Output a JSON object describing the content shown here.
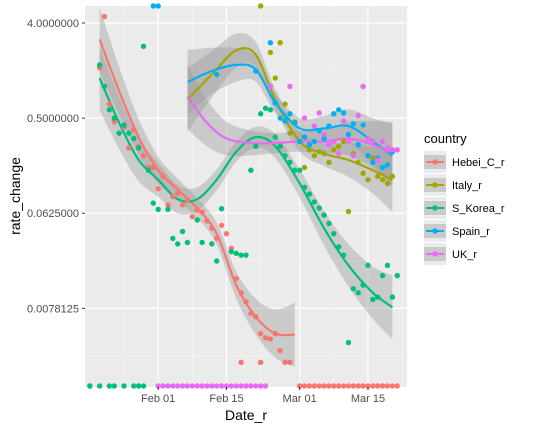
{
  "chart_data": {
    "type": "scatter",
    "xlabel": "Date_r",
    "ylabel": "rate_change",
    "y_scale": "log2",
    "ylim": [
      0.0014,
      5.8
    ],
    "xlim": [
      "2020-01-17",
      "2020-03-23"
    ],
    "x_ticks": [
      {
        "date": "2020-02-01",
        "label": "Feb 01"
      },
      {
        "date": "2020-02-15",
        "label": "Feb 15"
      },
      {
        "date": "2020-03-01",
        "label": "Mar 01"
      },
      {
        "date": "2020-03-15",
        "label": "Mar 15"
      }
    ],
    "y_ticks": [
      {
        "value": 0.0078125,
        "label": "0.0078125"
      },
      {
        "value": 0.0625,
        "label": "0.0625000"
      },
      {
        "value": 0.5,
        "label": "0.5000000"
      },
      {
        "value": 4,
        "label": "4.0000000"
      }
    ],
    "grid": true,
    "legend": {
      "title": "country",
      "placement": "right"
    },
    "series": [
      {
        "name": "Hebei_C_r",
        "color": "#F8766D",
        "points": [
          [
            "2020-01-20",
            1.5
          ],
          [
            "2020-01-21",
            4.6
          ],
          [
            "2020-01-22",
            0.68
          ],
          [
            "2020-01-23",
            0.46
          ],
          [
            "2020-01-24",
            0.36
          ],
          [
            "2020-01-25",
            0.41
          ],
          [
            "2020-01-26",
            0.26
          ],
          [
            "2020-01-27",
            0.39
          ],
          [
            "2020-01-28",
            0.27
          ],
          [
            "2020-01-29",
            0.22
          ],
          [
            "2020-01-30",
            0.17
          ],
          [
            "2020-01-31",
            0.17
          ],
          [
            "2020-02-01",
            0.107
          ],
          [
            "2020-02-02",
            0.14
          ],
          [
            "2020-02-03",
            0.075
          ],
          [
            "2020-02-04",
            0.09
          ],
          [
            "2020-02-05",
            0.097
          ],
          [
            "2020-02-06",
            0.075
          ],
          [
            "2020-02-07",
            0.083
          ],
          [
            "2020-02-08",
            0.058
          ],
          [
            "2020-02-09",
            0.067
          ],
          [
            "2020-02-10",
            0.064
          ],
          [
            "2020-02-11",
            0.053
          ],
          [
            "2020-02-12",
            0.045
          ],
          [
            "2020-02-13",
            0.036
          ],
          [
            "2020-02-14",
            0.048
          ],
          [
            "2020-02-15",
            0.04
          ],
          [
            "2020-02-16",
            0.029
          ],
          [
            "2020-02-17",
            0.015
          ],
          [
            "2020-02-18",
            0.011
          ],
          [
            "2020-02-19",
            0.009
          ],
          [
            "2020-02-20",
            0.007
          ],
          [
            "2020-02-21",
            0.0065
          ],
          [
            "2020-02-22",
            0.0045
          ],
          [
            "2020-02-23",
            0.0041
          ],
          [
            "2020-02-24",
            0.004
          ],
          [
            "2020-02-25",
            0.0045
          ],
          [
            "2020-02-26",
            0.0031
          ],
          [
            "2020-02-27",
            0.0024
          ],
          [
            "2020-02-28",
            0.0024
          ],
          [
            "2020-02-18",
            0.0024
          ],
          [
            "2020-02-22",
            0.0024
          ]
        ],
        "zeros": [
          "2020-01-18",
          "2020-03-01",
          "2020-03-02",
          "2020-03-03",
          "2020-03-04",
          "2020-03-05",
          "2020-03-06",
          "2020-03-07",
          "2020-03-08",
          "2020-03-09",
          "2020-03-10",
          "2020-03-11",
          "2020-03-12",
          "2020-03-13",
          "2020-03-14",
          "2020-03-15",
          "2020-03-16",
          "2020-03-17",
          "2020-03-18",
          "2020-03-19",
          "2020-03-20",
          "2020-03-21"
        ],
        "fit": [
          [
            "2020-01-20",
            2.8
          ],
          [
            "2020-01-24",
            0.9
          ],
          [
            "2020-01-28",
            0.33
          ],
          [
            "2020-02-01",
            0.16
          ],
          [
            "2020-02-05",
            0.105
          ],
          [
            "2020-02-09",
            0.07
          ],
          [
            "2020-02-13",
            0.04
          ],
          [
            "2020-02-17",
            0.013
          ],
          [
            "2020-02-21",
            0.0065
          ],
          [
            "2020-02-25",
            0.0045
          ],
          [
            "2020-02-29",
            0.0044
          ]
        ]
      },
      {
        "name": "Italy_r",
        "color": "#A3A500",
        "points": [
          [
            "2020-02-22",
            6.0
          ],
          [
            "2020-02-24",
            2.1
          ],
          [
            "2020-02-25",
            1.2
          ],
          [
            "2020-02-26",
            2.6
          ],
          [
            "2020-02-27",
            0.68
          ],
          [
            "2020-02-28",
            0.36
          ],
          [
            "2020-02-29",
            0.46
          ],
          [
            "2020-03-01",
            0.3
          ],
          [
            "2020-03-02",
            0.17
          ],
          [
            "2020-03-03",
            0.25
          ],
          [
            "2020-03-04",
            0.22
          ],
          [
            "2020-03-05",
            0.24
          ],
          [
            "2020-03-06",
            0.23
          ],
          [
            "2020-03-07",
            0.19
          ],
          [
            "2020-03-08",
            0.25
          ],
          [
            "2020-03-09",
            0.27
          ],
          [
            "2020-03-10",
            0.3
          ],
          [
            "2020-03-11",
            0.065
          ],
          [
            "2020-03-12",
            0.23
          ],
          [
            "2020-03-13",
            0.19
          ],
          [
            "2020-03-14",
            0.15
          ],
          [
            "2020-03-15",
            0.13
          ],
          [
            "2020-03-16",
            0.21
          ],
          [
            "2020-03-17",
            0.14
          ],
          [
            "2020-03-18",
            0.13
          ],
          [
            "2020-03-19",
            0.12
          ],
          [
            "2020-03-20",
            0.14
          ]
        ],
        "fit": [
          [
            "2020-02-07",
            0.75
          ],
          [
            "2020-02-12",
            1.3
          ],
          [
            "2020-02-17",
            2.2
          ],
          [
            "2020-02-21",
            2.0
          ],
          [
            "2020-02-25",
            0.75
          ],
          [
            "2020-03-01",
            0.3
          ],
          [
            "2020-03-06",
            0.23
          ],
          [
            "2020-03-11",
            0.2
          ],
          [
            "2020-03-16",
            0.16
          ],
          [
            "2020-03-20",
            0.13
          ]
        ]
      },
      {
        "name": "S_Korea_r",
        "color": "#00BF7D",
        "points": [
          [
            "2020-01-20",
            1.6
          ],
          [
            "2020-01-21",
            1.0
          ],
          [
            "2020-01-22",
            0.6
          ],
          [
            "2020-01-23",
            0.5
          ],
          [
            "2020-01-24",
            0.36
          ],
          [
            "2020-01-25",
            0.43
          ],
          [
            "2020-01-26",
            0.36
          ],
          [
            "2020-01-27",
            0.32
          ],
          [
            "2020-01-28",
            0.26
          ],
          [
            "2020-01-29",
            2.4
          ],
          [
            "2020-01-30",
            0.16
          ],
          [
            "2020-01-31",
            0.078
          ],
          [
            "2020-02-01",
            0.068
          ],
          [
            "2020-02-03",
            0.068
          ],
          [
            "2020-02-04",
            0.036
          ],
          [
            "2020-02-05",
            0.032
          ],
          [
            "2020-02-06",
            0.042
          ],
          [
            "2020-02-07",
            0.033
          ],
          [
            "2020-02-09",
            0.054
          ],
          [
            "2020-02-10",
            0.033
          ],
          [
            "2020-02-12",
            0.032
          ],
          [
            "2020-02-13",
            0.022
          ],
          [
            "2020-02-14",
            0.069
          ],
          [
            "2020-02-16",
            0.027
          ],
          [
            "2020-02-17",
            0.026
          ],
          [
            "2020-02-18",
            0.025
          ],
          [
            "2020-02-19",
            0.025
          ],
          [
            "2020-02-20",
            0.16
          ],
          [
            "2020-02-21",
            0.27
          ],
          [
            "2020-02-22",
            0.55
          ],
          [
            "2020-02-23",
            0.62
          ],
          [
            "2020-02-24",
            0.6
          ],
          [
            "2020-02-25",
            0.33
          ],
          [
            "2020-02-26",
            0.27
          ],
          [
            "2020-02-27",
            0.22
          ],
          [
            "2020-02-28",
            0.19
          ],
          [
            "2020-02-29",
            0.16
          ],
          [
            "2020-03-01",
            0.16
          ],
          [
            "2020-03-02",
            0.11
          ],
          [
            "2020-03-03",
            0.095
          ],
          [
            "2020-03-04",
            0.08
          ],
          [
            "2020-03-05",
            0.07
          ],
          [
            "2020-03-06",
            0.06
          ],
          [
            "2020-03-07",
            0.05
          ],
          [
            "2020-03-08",
            0.04
          ],
          [
            "2020-03-09",
            0.03
          ],
          [
            "2020-03-10",
            0.025
          ],
          [
            "2020-03-11",
            0.0037
          ],
          [
            "2020-03-12",
            0.012
          ],
          [
            "2020-03-13",
            0.011
          ],
          [
            "2020-03-14",
            0.013
          ],
          [
            "2020-03-15",
            0.02
          ],
          [
            "2020-03-16",
            0.0095
          ],
          [
            "2020-03-17",
            0.01
          ],
          [
            "2020-03-18",
            0.016
          ],
          [
            "2020-03-19",
            0.02
          ],
          [
            "2020-03-20",
            0.01
          ],
          [
            "2020-03-21",
            0.016
          ]
        ],
        "zeros": [
          "2020-01-18",
          "2020-01-20",
          "2020-01-22",
          "2020-01-23",
          "2020-01-25",
          "2020-01-27",
          "2020-01-28",
          "2020-01-29"
        ],
        "fit": [
          [
            "2020-01-20",
            1.2
          ],
          [
            "2020-01-24",
            0.45
          ],
          [
            "2020-01-28",
            0.2
          ],
          [
            "2020-02-01",
            0.13
          ],
          [
            "2020-02-05",
            0.085
          ],
          [
            "2020-02-09",
            0.085
          ],
          [
            "2020-02-13",
            0.13
          ],
          [
            "2020-02-17",
            0.24
          ],
          [
            "2020-02-21",
            0.33
          ],
          [
            "2020-02-25",
            0.27
          ],
          [
            "2020-03-01",
            0.12
          ],
          [
            "2020-03-06",
            0.045
          ],
          [
            "2020-03-11",
            0.02
          ],
          [
            "2020-03-16",
            0.011
          ],
          [
            "2020-03-20",
            0.008
          ]
        ]
      },
      {
        "name": "Spain_r",
        "color": "#00B0F6",
        "points": [
          [
            "2020-01-31",
            6.0
          ],
          [
            "2020-02-01",
            6.0
          ],
          [
            "2020-02-13",
            1.3
          ],
          [
            "2020-02-21",
            1.4
          ],
          [
            "2020-02-24",
            2.6
          ],
          [
            "2020-02-25",
            0.7
          ],
          [
            "2020-02-26",
            0.5
          ],
          [
            "2020-02-27",
            0.47
          ],
          [
            "2020-02-28",
            0.55
          ],
          [
            "2020-02-29",
            0.45
          ],
          [
            "2020-03-01",
            0.3
          ],
          [
            "2020-03-02",
            0.33
          ],
          [
            "2020-03-03",
            0.28
          ],
          [
            "2020-03-04",
            0.3
          ],
          [
            "2020-03-05",
            0.38
          ],
          [
            "2020-03-06",
            0.32
          ],
          [
            "2020-03-07",
            0.42
          ],
          [
            "2020-03-08",
            0.55
          ],
          [
            "2020-03-09",
            0.6
          ],
          [
            "2020-03-10",
            0.56
          ],
          [
            "2020-03-11",
            0.35
          ],
          [
            "2020-03-12",
            0.44
          ],
          [
            "2020-03-13",
            0.28
          ],
          [
            "2020-03-14",
            0.43
          ],
          [
            "2020-03-15",
            0.22
          ],
          [
            "2020-03-16",
            0.19
          ],
          [
            "2020-03-17",
            0.21
          ],
          [
            "2020-03-18",
            0.17
          ],
          [
            "2020-03-19",
            0.18
          ],
          [
            "2020-03-20",
            0.24
          ]
        ],
        "fit": [
          [
            "2020-02-07",
            1.1
          ],
          [
            "2020-02-12",
            1.4
          ],
          [
            "2020-02-17",
            1.6
          ],
          [
            "2020-02-21",
            1.45
          ],
          [
            "2020-02-25",
            0.7
          ],
          [
            "2020-03-01",
            0.4
          ],
          [
            "2020-03-06",
            0.4
          ],
          [
            "2020-03-11",
            0.42
          ],
          [
            "2020-03-16",
            0.3
          ],
          [
            "2020-03-20",
            0.22
          ]
        ]
      },
      {
        "name": "UK_r",
        "color": "#E76BF3",
        "points": [
          [
            "2020-02-24",
            1.0
          ],
          [
            "2020-02-28",
            1.0
          ],
          [
            "2020-03-02",
            0.5
          ],
          [
            "2020-03-04",
            0.42
          ],
          [
            "2020-03-05",
            0.56
          ],
          [
            "2020-03-06",
            0.35
          ],
          [
            "2020-03-07",
            0.28
          ],
          [
            "2020-03-08",
            0.3
          ],
          [
            "2020-03-09",
            0.23
          ],
          [
            "2020-03-10",
            0.47
          ],
          [
            "2020-03-11",
            0.3
          ],
          [
            "2020-03-12",
            0.22
          ],
          [
            "2020-03-13",
            0.53
          ],
          [
            "2020-03-14",
            1.0
          ],
          [
            "2020-03-15",
            0.32
          ],
          [
            "2020-03-16",
            0.3
          ],
          [
            "2020-03-17",
            0.2
          ],
          [
            "2020-03-18",
            0.3
          ],
          [
            "2020-03-19",
            0.26
          ],
          [
            "2020-03-20",
            0.25
          ],
          [
            "2020-03-21",
            0.25
          ]
        ],
        "zeros": [
          "2020-02-01",
          "2020-02-02",
          "2020-02-03",
          "2020-02-04",
          "2020-02-05",
          "2020-02-06",
          "2020-02-07",
          "2020-02-08",
          "2020-02-09",
          "2020-02-10",
          "2020-02-11",
          "2020-02-12",
          "2020-02-13",
          "2020-02-14",
          "2020-02-15",
          "2020-02-16",
          "2020-02-17",
          "2020-02-18",
          "2020-02-19",
          "2020-02-20",
          "2020-02-21",
          "2020-02-22",
          "2020-02-23"
        ],
        "fit": [
          [
            "2020-02-07",
            0.8
          ],
          [
            "2020-02-11",
            0.45
          ],
          [
            "2020-02-15",
            0.32
          ],
          [
            "2020-02-20",
            0.29
          ],
          [
            "2020-02-25",
            0.29
          ],
          [
            "2020-03-01",
            0.3
          ],
          [
            "2020-03-06",
            0.3
          ],
          [
            "2020-03-11",
            0.32
          ],
          [
            "2020-03-16",
            0.28
          ],
          [
            "2020-03-20",
            0.23
          ]
        ]
      }
    ]
  }
}
